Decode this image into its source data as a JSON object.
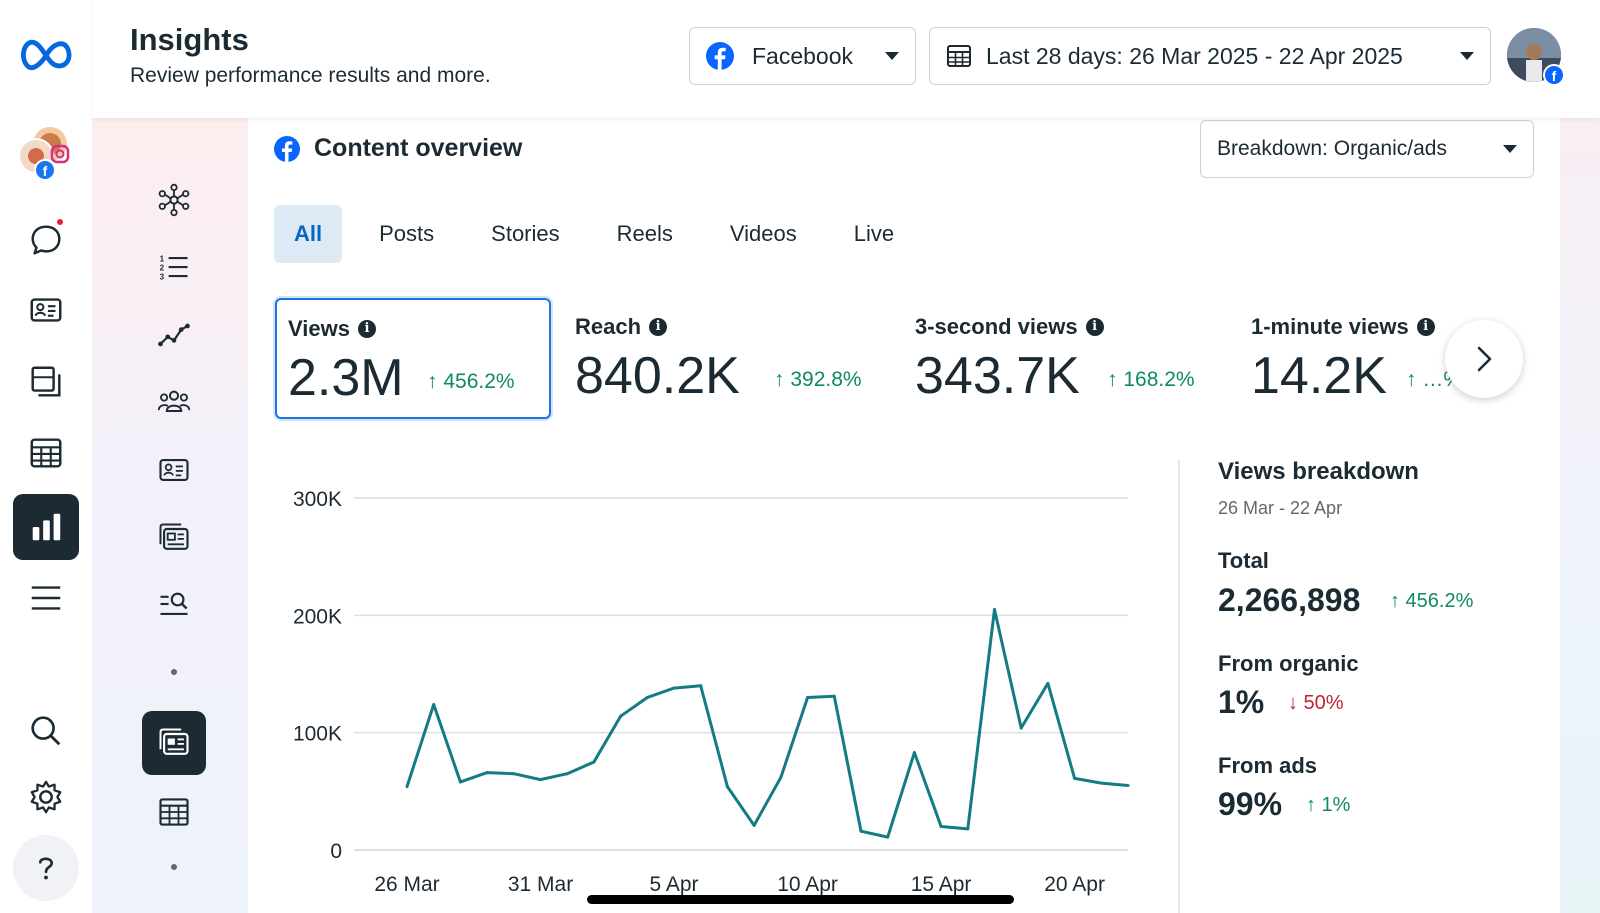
{
  "header": {
    "title": "Insights",
    "subtitle": "Review performance results and more.",
    "platform_dropdown": "Facebook",
    "date_dropdown": "Last 28 days: 26 Mar 2025 - 22 Apr 2025"
  },
  "content_overview": {
    "title": "Content overview",
    "breakdown_dropdown": "Breakdown: Organic/ads",
    "tabs": [
      {
        "label": "All",
        "active": true
      },
      {
        "label": "Posts",
        "active": false
      },
      {
        "label": "Stories",
        "active": false
      },
      {
        "label": "Reels",
        "active": false
      },
      {
        "label": "Videos",
        "active": false
      },
      {
        "label": "Live",
        "active": false
      }
    ],
    "metrics": [
      {
        "label": "Views",
        "value": "2.3M",
        "change": "↑ 456.2%",
        "selected": true
      },
      {
        "label": "Reach",
        "value": "840.2K",
        "change": "↑ 392.8%",
        "selected": false
      },
      {
        "label": "3-second views",
        "value": "343.7K",
        "change": "↑ 168.2%",
        "selected": false
      },
      {
        "label": "1-minute views",
        "value": "14.2K",
        "change": "↑ …%",
        "selected": false
      }
    ]
  },
  "views_breakdown": {
    "title": "Views breakdown",
    "range": "26 Mar - 22 Apr",
    "total_label": "Total",
    "total_value": "2,266,898",
    "total_change": "↑ 456.2%",
    "organic_label": "From organic",
    "organic_value": "1%",
    "organic_change": "↓ 50%",
    "ads_label": "From ads",
    "ads_value": "99%",
    "ads_change": "↑ 1%"
  },
  "colors": {
    "accent": "#0a66c2",
    "line": "#137c83",
    "positive": "#0f8a5f",
    "negative": "#c0242f"
  },
  "chart_data": {
    "type": "line",
    "title": "",
    "xlabel": "",
    "ylabel": "",
    "ylim": [
      0,
      300000
    ],
    "y_ticks": [
      0,
      100000,
      200000,
      300000
    ],
    "y_tick_labels": [
      "0",
      "100K",
      "200K",
      "300K"
    ],
    "x_tick_labels": [
      "26 Mar",
      "31 Mar",
      "5 Apr",
      "10 Apr",
      "15 Apr",
      "20 Apr"
    ],
    "x": [
      "26 Mar",
      "27 Mar",
      "28 Mar",
      "29 Mar",
      "30 Mar",
      "31 Mar",
      "1 Apr",
      "2 Apr",
      "3 Apr",
      "4 Apr",
      "5 Apr",
      "6 Apr",
      "7 Apr",
      "8 Apr",
      "9 Apr",
      "10 Apr",
      "11 Apr",
      "12 Apr",
      "13 Apr",
      "14 Apr",
      "15 Apr",
      "16 Apr",
      "17 Apr",
      "18 Apr",
      "19 Apr",
      "20 Apr",
      "21 Apr",
      "22 Apr"
    ],
    "series": [
      {
        "values": [
          54000,
          124000,
          58000,
          66000,
          65000,
          60000,
          65000,
          75000,
          114000,
          130000,
          138000,
          140000,
          54000,
          21000,
          62000,
          130000,
          131000,
          16000,
          11000,
          83000,
          20000,
          18000,
          205000,
          104000,
          142000,
          61000,
          57000,
          55000
        ]
      }
    ],
    "grid": true,
    "legend": "none"
  }
}
